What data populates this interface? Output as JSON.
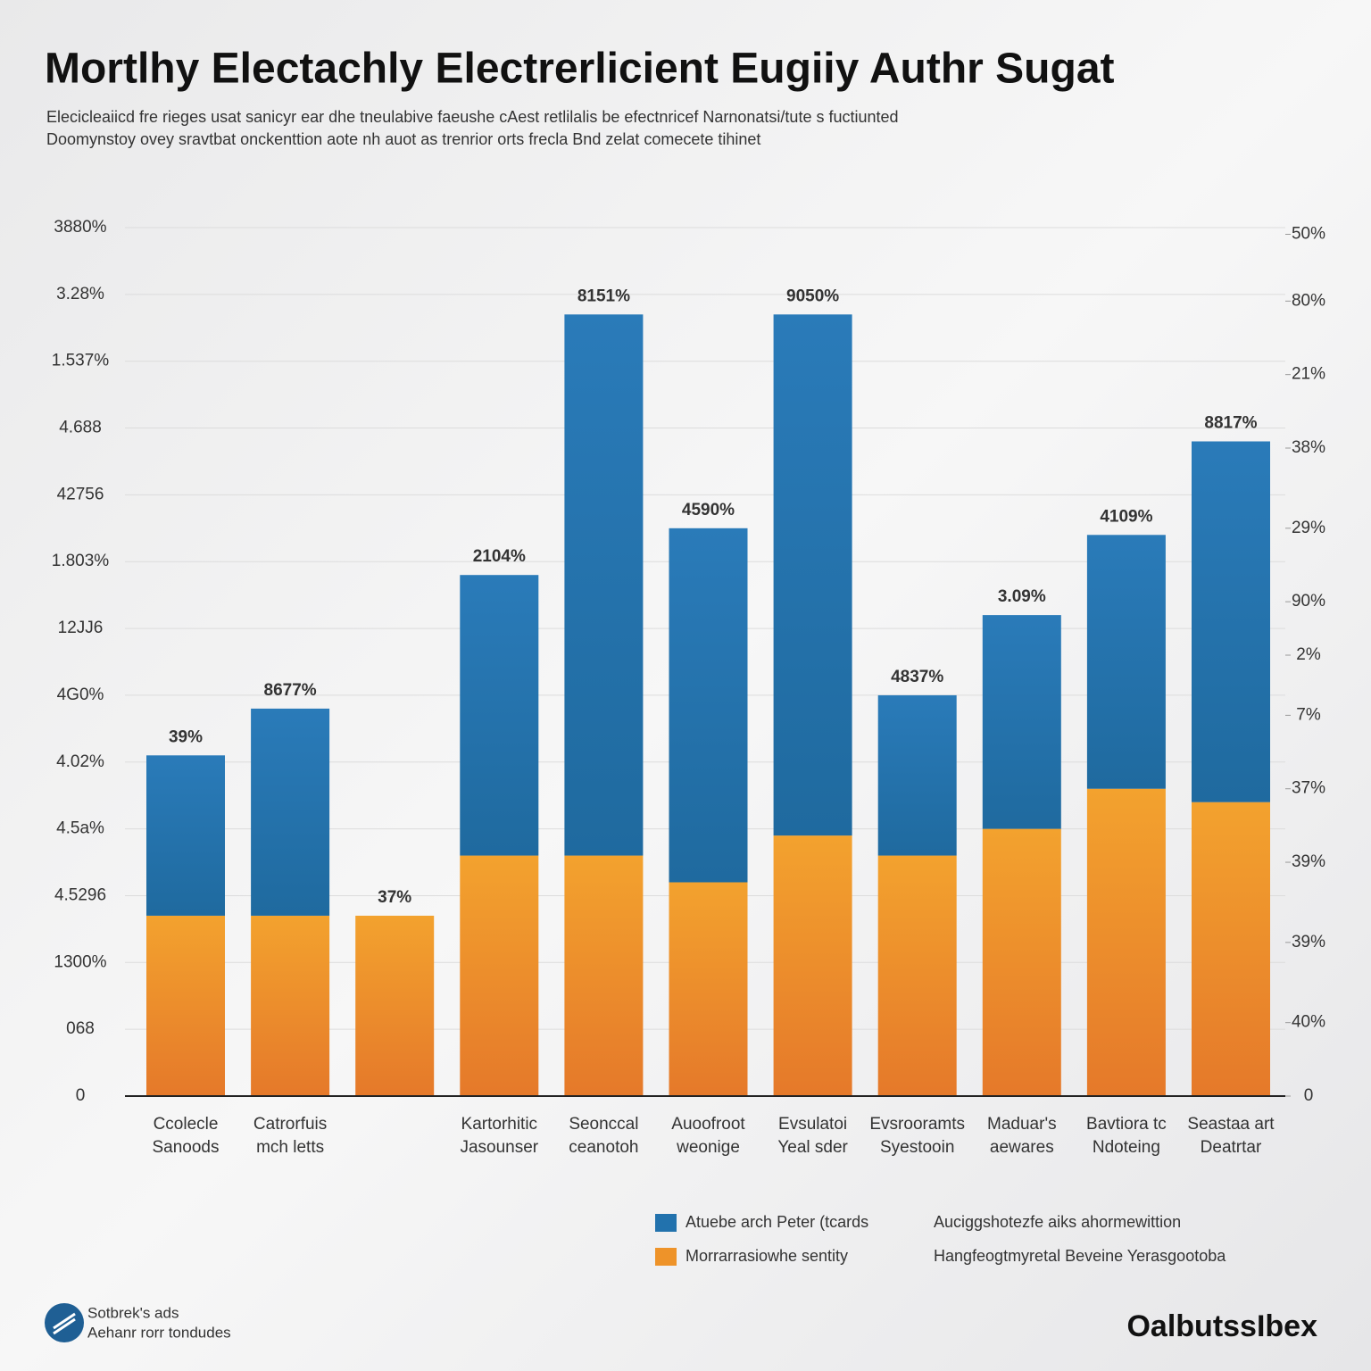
{
  "chart_data": {
    "type": "stacked-bar",
    "title": "Mortlhy Electachly Electrerlicient Eugiiy Authr Sugat",
    "subtitle": [
      "Elecicleaiicd fre rieges usat sanicyr ear dhe tneulabive faeushe cAest retlilalis be efectnricef Narnonatsi/tute s fuctiunted",
      "Doomynstoy ovey sravtbat onckenttion aote nh auot as trenrior orts frecla Bnd zelat comecete tihinet"
    ],
    "categories": [
      [
        "Ccolecle",
        "Sanoods"
      ],
      [
        "Catrorfuis",
        "mch letts"
      ],
      null,
      [
        "Kartorhitic",
        "Jasounser"
      ],
      [
        "Seonccal",
        "ceanotoh"
      ],
      [
        "Auoofroot",
        "weonige"
      ],
      [
        "Evsulatoi",
        "Yeal sder"
      ],
      [
        "Evsrooramts",
        "Syestooin"
      ],
      [
        "Maduar's",
        "aewares"
      ],
      [
        "Bavtiora tc",
        "Ndoteing"
      ],
      [
        "Seastaa art",
        "Deatrtar"
      ]
    ],
    "series": [
      {
        "name": "Morrarrasiowhe sentity",
        "color": "#ee9329",
        "values": [
          2.7,
          2.7,
          2.7,
          3.6,
          3.6,
          3.2,
          3.9,
          3.6,
          4.0,
          4.6,
          4.4
        ]
      },
      {
        "name": "Atuebe arch Peter (tcards",
        "color": "#2272ad",
        "values": [
          2.4,
          3.1,
          0,
          4.2,
          8.1,
          5.3,
          7.8,
          2.4,
          3.2,
          3.8,
          5.4
        ]
      }
    ],
    "bar_labels": [
      "39%",
      "8677%",
      "37%",
      "2104%",
      "8151%",
      "4590%",
      "9050%",
      "4837%",
      "3.09%",
      "4109%",
      "8817%"
    ],
    "ylim": [
      0,
      13
    ],
    "yticks": [
      0,
      {
        "value": 1,
        "label": "068"
      },
      {
        "value": 2,
        "label": "1300%"
      },
      {
        "value": 3,
        "label": "4.5296"
      },
      {
        "value": 4,
        "label": "4.5a%"
      },
      {
        "value": 5,
        "label": "4.02%"
      },
      {
        "value": 6,
        "label": "4G0%"
      },
      {
        "value": 7,
        "label": "12JJ6"
      },
      {
        "value": 8,
        "label": "1.803%"
      },
      {
        "value": 9,
        "label": "42756"
      },
      {
        "value": 10,
        "label": "4.688"
      },
      {
        "value": 11,
        "label": "1.537%"
      },
      {
        "value": 12,
        "label": "3.28%"
      },
      {
        "value": 13,
        "label": "3880%"
      }
    ],
    "y2lim": [
      0,
      13
    ],
    "y2ticks": [
      0,
      {
        "value": 1.1,
        "label": "40%"
      },
      {
        "value": 2.3,
        "label": "39%"
      },
      {
        "value": 3.5,
        "label": "39%"
      },
      {
        "value": 4.6,
        "label": "37%"
      },
      {
        "value": 5.7,
        "label": "7%"
      },
      {
        "value": 6.6,
        "label": "2%"
      },
      {
        "value": 7.4,
        "label": "90%"
      },
      {
        "value": 8.5,
        "label": "29%"
      },
      {
        "value": 9.7,
        "label": "38%"
      },
      {
        "value": 10.8,
        "label": "21%"
      },
      {
        "value": 11.9,
        "label": "80%"
      },
      {
        "value": 12.9,
        "label": "50%"
      }
    ],
    "grid": true,
    "legend_notes": [
      "Auciggshotezfe aiks ahormewittion",
      "Hangfeogtmyretal Beveine Yerasgootoba"
    ],
    "footer": [
      "Sotbrek's ads",
      "Aehanr rorr tondudes"
    ],
    "brand": "OalbutssIbex"
  }
}
